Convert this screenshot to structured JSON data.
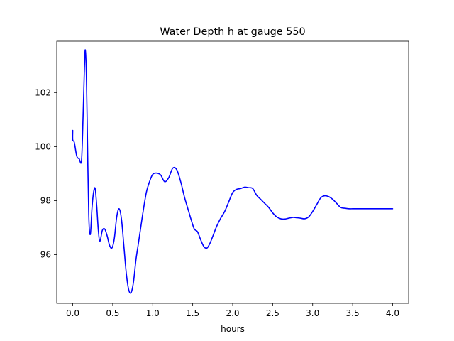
{
  "chart_data": {
    "type": "line",
    "title": "Water Depth h at gauge 550",
    "xlabel": "hours",
    "ylabel": "",
    "xlim": [
      -0.2,
      4.2
    ],
    "ylim": [
      94.2,
      103.9
    ],
    "xticks": [
      0.0,
      0.5,
      1.0,
      1.5,
      2.0,
      2.5,
      3.0,
      3.5,
      4.0
    ],
    "xtick_labels": [
      "0.0",
      "0.5",
      "1.0",
      "1.5",
      "2.0",
      "2.5",
      "3.0",
      "3.5",
      "4.0"
    ],
    "yticks": [
      96,
      98,
      100,
      102
    ],
    "ytick_labels": [
      "96",
      "98",
      "100",
      "102"
    ],
    "grid": false,
    "series": [
      {
        "color": "#0000ff",
        "x": [
          0.0,
          0.0,
          0.02,
          0.05,
          0.08,
          0.11,
          0.13,
          0.15,
          0.16,
          0.17,
          0.18,
          0.2,
          0.22,
          0.24,
          0.26,
          0.28,
          0.3,
          0.32,
          0.34,
          0.37,
          0.4,
          0.43,
          0.46,
          0.49,
          0.52,
          0.55,
          0.58,
          0.61,
          0.64,
          0.67,
          0.7,
          0.73,
          0.76,
          0.79,
          0.82,
          0.85,
          0.88,
          0.92,
          0.96,
          1.0,
          1.05,
          1.1,
          1.15,
          1.2,
          1.25,
          1.3,
          1.35,
          1.4,
          1.45,
          1.48,
          1.52,
          1.56,
          1.6,
          1.64,
          1.68,
          1.72,
          1.76,
          1.8,
          1.85,
          1.9,
          1.95,
          2.0,
          2.05,
          2.1,
          2.15,
          2.2,
          2.25,
          2.3,
          2.35,
          2.4,
          2.45,
          2.5,
          2.55,
          2.6,
          2.65,
          2.7,
          2.75,
          2.8,
          2.85,
          2.9,
          2.95,
          3.0,
          3.05,
          3.1,
          3.15,
          3.2,
          3.25,
          3.3,
          3.35,
          3.4,
          3.45,
          3.5,
          3.55,
          3.6,
          3.65,
          3.7,
          3.75,
          3.8,
          3.85,
          3.9,
          3.95,
          4.0
        ],
        "y": [
          100.6,
          100.25,
          100.15,
          99.65,
          99.55,
          99.5,
          101.2,
          103.3,
          103.5,
          102.7,
          101.0,
          97.5,
          96.75,
          97.7,
          98.3,
          98.45,
          97.8,
          96.9,
          96.5,
          96.9,
          96.95,
          96.7,
          96.35,
          96.25,
          96.6,
          97.4,
          97.7,
          97.3,
          96.3,
          95.3,
          94.7,
          94.6,
          95.0,
          95.8,
          96.4,
          97.0,
          97.6,
          98.3,
          98.7,
          98.97,
          99.02,
          98.95,
          98.7,
          98.85,
          99.2,
          99.15,
          98.7,
          98.1,
          97.6,
          97.3,
          96.95,
          96.85,
          96.55,
          96.3,
          96.25,
          96.45,
          96.75,
          97.05,
          97.35,
          97.6,
          97.95,
          98.3,
          98.42,
          98.45,
          98.5,
          98.48,
          98.45,
          98.2,
          98.05,
          97.9,
          97.75,
          97.55,
          97.4,
          97.33,
          97.32,
          97.35,
          97.38,
          97.37,
          97.35,
          97.33,
          97.4,
          97.6,
          97.85,
          98.1,
          98.18,
          98.15,
          98.05,
          97.9,
          97.75,
          97.72,
          97.7,
          97.7,
          97.7,
          97.7,
          97.7,
          97.7,
          97.7,
          97.7,
          97.7,
          97.7,
          97.7,
          97.7
        ]
      }
    ]
  }
}
